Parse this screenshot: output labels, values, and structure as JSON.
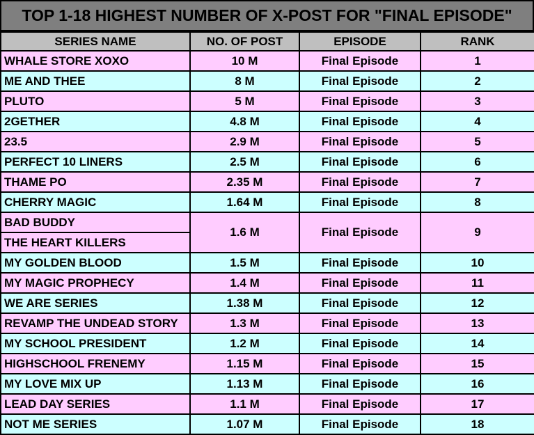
{
  "title": "TOP 1-18 HIGHEST NUMBER OF X-POST FOR \"FINAL EPISODE\"",
  "headers": {
    "series": "SERIES NAME",
    "posts": "NO. OF POST",
    "episode": "EPISODE",
    "rank": "RANK"
  },
  "rows": [
    {
      "name": "WHALE STORE XOXO",
      "posts": "10 M",
      "episode": "Final Episode",
      "rank": "1"
    },
    {
      "name": "ME AND THEE",
      "posts": "8 M",
      "episode": "Final Episode",
      "rank": "2"
    },
    {
      "name": "PLUTO",
      "posts": "5 M",
      "episode": "Final Episode",
      "rank": "3"
    },
    {
      "name": "2GETHER",
      "posts": "4.8 M",
      "episode": "Final Episode",
      "rank": "4"
    },
    {
      "name": "23.5",
      "posts": "2.9 M",
      "episode": "Final Episode",
      "rank": "5"
    },
    {
      "name": "PERFECT 10 LINERS",
      "posts": "2.5 M",
      "episode": "Final Episode",
      "rank": "6"
    },
    {
      "name": "THAME PO",
      "posts": "2.35 M",
      "episode": "Final Episode",
      "rank": "7"
    },
    {
      "name": "CHERRY MAGIC",
      "posts": "1.64 M",
      "episode": "Final Episode",
      "rank": "8"
    },
    {
      "name": "BAD BUDDY",
      "name2": "THE HEART KILLERS",
      "posts": "1.6 M",
      "episode": "Final Episode",
      "rank": "9"
    },
    {
      "name": "MY GOLDEN BLOOD",
      "posts": "1.5 M",
      "episode": "Final Episode",
      "rank": "10"
    },
    {
      "name": "MY MAGIC PROPHECY",
      "posts": "1.4 M",
      "episode": "Final Episode",
      "rank": "11"
    },
    {
      "name": "WE ARE SERIES",
      "posts": "1.38 M",
      "episode": "Final Episode",
      "rank": "12"
    },
    {
      "name": "REVAMP THE UNDEAD STORY",
      "posts": "1.3 M",
      "episode": "Final Episode",
      "rank": "13"
    },
    {
      "name": "MY SCHOOL PRESIDENT",
      "posts": "1.2 M",
      "episode": "Final Episode",
      "rank": "14"
    },
    {
      "name": "HIGHSCHOOL FRENEMY",
      "posts": "1.15 M",
      "episode": "Final Episode",
      "rank": "15"
    },
    {
      "name": "MY LOVE MIX UP",
      "posts": "1.13 M",
      "episode": "Final Episode",
      "rank": "16"
    },
    {
      "name": "LEAD DAY SERIES",
      "posts": "1.1 M",
      "episode": "Final Episode",
      "rank": "17"
    },
    {
      "name": "NOT ME SERIES",
      "posts": "1.07 M",
      "episode": "Final Episode",
      "rank": "18"
    }
  ]
}
